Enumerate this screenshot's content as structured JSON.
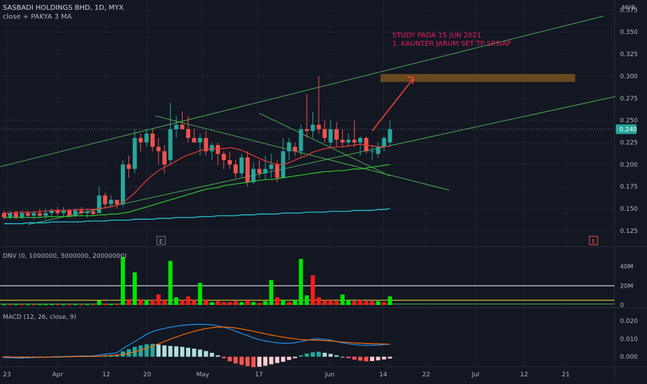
{
  "header": {
    "symbol_line": "SASBADI HOLDINGS BHD, 1D, MYX",
    "indicator_line": "close + PAKYA 3 MA",
    "currency": "MYR"
  },
  "annotation": {
    "line1": "STUDY PADA 15 JUN 2021",
    "line2": "1. KAUNTER JARUM SET TP SESIAP"
  },
  "price_axis": {
    "ticks": [
      "0.375",
      "0.350",
      "0.325",
      "0.300",
      "0.275",
      "0.250",
      "0.225",
      "0.200",
      "0.175",
      "0.150",
      "0.125"
    ],
    "last_price": "0.240"
  },
  "volume_pane": {
    "title": "DNV (0, 1000000, 5000000, 20000000)",
    "ticks": [
      "40M",
      "20M",
      "0"
    ]
  },
  "macd_pane": {
    "title": "MACD (12, 26, close, 9)",
    "ticks": [
      "0.020",
      "0.010",
      "0.000"
    ]
  },
  "time_axis": {
    "labels": [
      "23",
      "Apr",
      "12",
      "20",
      "May",
      "17",
      "Jun",
      "14",
      "22",
      "Jul",
      "12",
      "21"
    ]
  },
  "markers": {
    "earnings": "E"
  },
  "colors": {
    "background": "#131722",
    "up": "#26a69a",
    "down": "#ef5350",
    "ma_short": "#e53935",
    "ma_mid": "#2ebd2e",
    "ma_long": "#26c6da",
    "trendline": "#4caf50",
    "target_box": "#6d4c1f",
    "annotation": "#e91e63",
    "arrow": "#f44336",
    "vol_up": "#00e600",
    "vol_down": "#ff1a1a",
    "macd_line": "#2196f3",
    "signal_line": "#ff6d00"
  },
  "chart_data": {
    "type": "candlestick",
    "ylim": [
      0.11,
      0.38
    ],
    "candles": [
      {
        "o": 0.145,
        "h": 0.148,
        "l": 0.138,
        "c": 0.14
      },
      {
        "o": 0.14,
        "h": 0.148,
        "l": 0.138,
        "c": 0.145
      },
      {
        "o": 0.145,
        "h": 0.148,
        "l": 0.138,
        "c": 0.14
      },
      {
        "o": 0.14,
        "h": 0.148,
        "l": 0.138,
        "c": 0.145
      },
      {
        "o": 0.145,
        "h": 0.148,
        "l": 0.14,
        "c": 0.142
      },
      {
        "o": 0.142,
        "h": 0.148,
        "l": 0.138,
        "c": 0.145
      },
      {
        "o": 0.145,
        "h": 0.15,
        "l": 0.14,
        "c": 0.142
      },
      {
        "o": 0.142,
        "h": 0.15,
        "l": 0.138,
        "c": 0.145
      },
      {
        "o": 0.145,
        "h": 0.15,
        "l": 0.14,
        "c": 0.148
      },
      {
        "o": 0.148,
        "h": 0.152,
        "l": 0.142,
        "c": 0.145
      },
      {
        "o": 0.145,
        "h": 0.152,
        "l": 0.14,
        "c": 0.148
      },
      {
        "o": 0.148,
        "h": 0.15,
        "l": 0.14,
        "c": 0.142
      },
      {
        "o": 0.142,
        "h": 0.15,
        "l": 0.14,
        "c": 0.148
      },
      {
        "o": 0.148,
        "h": 0.152,
        "l": 0.142,
        "c": 0.145
      },
      {
        "o": 0.145,
        "h": 0.15,
        "l": 0.14,
        "c": 0.147
      },
      {
        "o": 0.147,
        "h": 0.15,
        "l": 0.142,
        "c": 0.144
      },
      {
        "o": 0.145,
        "h": 0.175,
        "l": 0.145,
        "c": 0.165
      },
      {
        "o": 0.165,
        "h": 0.168,
        "l": 0.15,
        "c": 0.155
      },
      {
        "o": 0.155,
        "h": 0.165,
        "l": 0.152,
        "c": 0.16
      },
      {
        "o": 0.16,
        "h": 0.16,
        "l": 0.15,
        "c": 0.155
      },
      {
        "o": 0.155,
        "h": 0.205,
        "l": 0.152,
        "c": 0.2
      },
      {
        "o": 0.2,
        "h": 0.21,
        "l": 0.185,
        "c": 0.195
      },
      {
        "o": 0.195,
        "h": 0.24,
        "l": 0.19,
        "c": 0.23
      },
      {
        "o": 0.23,
        "h": 0.235,
        "l": 0.215,
        "c": 0.225
      },
      {
        "o": 0.225,
        "h": 0.24,
        "l": 0.22,
        "c": 0.235
      },
      {
        "o": 0.235,
        "h": 0.24,
        "l": 0.215,
        "c": 0.22
      },
      {
        "o": 0.22,
        "h": 0.23,
        "l": 0.2,
        "c": 0.215
      },
      {
        "o": 0.215,
        "h": 0.222,
        "l": 0.19,
        "c": 0.2
      },
      {
        "o": 0.205,
        "h": 0.27,
        "l": 0.2,
        "c": 0.24
      },
      {
        "o": 0.24,
        "h": 0.255,
        "l": 0.23,
        "c": 0.245
      },
      {
        "o": 0.245,
        "h": 0.26,
        "l": 0.24,
        "c": 0.24
      },
      {
        "o": 0.24,
        "h": 0.255,
        "l": 0.225,
        "c": 0.23
      },
      {
        "o": 0.23,
        "h": 0.24,
        "l": 0.225,
        "c": 0.225
      },
      {
        "o": 0.225,
        "h": 0.235,
        "l": 0.21,
        "c": 0.23
      },
      {
        "o": 0.23,
        "h": 0.238,
        "l": 0.21,
        "c": 0.215
      },
      {
        "o": 0.215,
        "h": 0.225,
        "l": 0.205,
        "c": 0.222
      },
      {
        "o": 0.222,
        "h": 0.225,
        "l": 0.2,
        "c": 0.212
      },
      {
        "o": 0.212,
        "h": 0.215,
        "l": 0.195,
        "c": 0.205
      },
      {
        "o": 0.205,
        "h": 0.215,
        "l": 0.195,
        "c": 0.2
      },
      {
        "o": 0.2,
        "h": 0.205,
        "l": 0.185,
        "c": 0.19
      },
      {
        "o": 0.19,
        "h": 0.212,
        "l": 0.185,
        "c": 0.208
      },
      {
        "o": 0.208,
        "h": 0.215,
        "l": 0.175,
        "c": 0.18
      },
      {
        "o": 0.18,
        "h": 0.202,
        "l": 0.178,
        "c": 0.195
      },
      {
        "o": 0.195,
        "h": 0.205,
        "l": 0.185,
        "c": 0.19
      },
      {
        "o": 0.19,
        "h": 0.21,
        "l": 0.182,
        "c": 0.195
      },
      {
        "o": 0.195,
        "h": 0.212,
        "l": 0.185,
        "c": 0.2
      },
      {
        "o": 0.2,
        "h": 0.205,
        "l": 0.18,
        "c": 0.185
      },
      {
        "o": 0.185,
        "h": 0.23,
        "l": 0.185,
        "c": 0.215
      },
      {
        "o": 0.215,
        "h": 0.23,
        "l": 0.205,
        "c": 0.225
      },
      {
        "o": 0.22,
        "h": 0.225,
        "l": 0.21,
        "c": 0.215
      },
      {
        "o": 0.215,
        "h": 0.245,
        "l": 0.21,
        "c": 0.24
      },
      {
        "o": 0.24,
        "h": 0.28,
        "l": 0.23,
        "c": 0.238
      },
      {
        "o": 0.238,
        "h": 0.26,
        "l": 0.23,
        "c": 0.245
      },
      {
        "o": 0.245,
        "h": 0.3,
        "l": 0.235,
        "c": 0.24
      },
      {
        "o": 0.24,
        "h": 0.25,
        "l": 0.225,
        "c": 0.23
      },
      {
        "o": 0.225,
        "h": 0.25,
        "l": 0.22,
        "c": 0.24
      },
      {
        "o": 0.24,
        "h": 0.248,
        "l": 0.22,
        "c": 0.228
      },
      {
        "o": 0.228,
        "h": 0.24,
        "l": 0.22,
        "c": 0.225
      },
      {
        "o": 0.225,
        "h": 0.235,
        "l": 0.22,
        "c": 0.228
      },
      {
        "o": 0.228,
        "h": 0.25,
        "l": 0.22,
        "c": 0.225
      },
      {
        "o": 0.225,
        "h": 0.232,
        "l": 0.21,
        "c": 0.23
      },
      {
        "o": 0.23,
        "h": 0.232,
        "l": 0.212,
        "c": 0.215
      },
      {
        "o": 0.215,
        "h": 0.222,
        "l": 0.205,
        "c": 0.215
      },
      {
        "o": 0.212,
        "h": 0.225,
        "l": 0.208,
        "c": 0.22
      },
      {
        "o": 0.22,
        "h": 0.232,
        "l": 0.215,
        "c": 0.23
      },
      {
        "o": 0.225,
        "h": 0.25,
        "l": 0.22,
        "c": 0.24
      }
    ],
    "ma_short": [
      0.145,
      0.145,
      0.146,
      0.146,
      0.146,
      0.146,
      0.147,
      0.147,
      0.148,
      0.148,
      0.148,
      0.148,
      0.149,
      0.149,
      0.149,
      0.149,
      0.15,
      0.151,
      0.152,
      0.154,
      0.157,
      0.162,
      0.168,
      0.175,
      0.182,
      0.188,
      0.193,
      0.197,
      0.2,
      0.204,
      0.208,
      0.211,
      0.213,
      0.216,
      0.217,
      0.218,
      0.218,
      0.218,
      0.219,
      0.218,
      0.216,
      0.213,
      0.21,
      0.207,
      0.204,
      0.202,
      0.2,
      0.2,
      0.202,
      0.205,
      0.208,
      0.21,
      0.214,
      0.216,
      0.218,
      0.219,
      0.22,
      0.22,
      0.221,
      0.222,
      0.223,
      0.222,
      0.221,
      0.22,
      0.22,
      0.221
    ],
    "ma_mid": [
      0.14,
      0.14,
      0.14,
      0.14,
      0.14,
      0.14,
      0.14,
      0.141,
      0.141,
      0.141,
      0.141,
      0.141,
      0.142,
      0.142,
      0.142,
      0.142,
      0.143,
      0.143,
      0.144,
      0.144,
      0.145,
      0.146,
      0.148,
      0.15,
      0.152,
      0.154,
      0.156,
      0.158,
      0.16,
      0.162,
      0.164,
      0.166,
      0.168,
      0.17,
      0.172,
      0.173,
      0.174,
      0.176,
      0.177,
      0.178,
      0.179,
      0.18,
      0.181,
      0.182,
      0.183,
      0.183,
      0.184,
      0.185,
      0.186,
      0.187,
      0.188,
      0.189,
      0.19,
      0.191,
      0.192,
      0.192,
      0.193,
      0.193,
      0.194,
      0.195,
      0.195,
      0.196,
      0.197,
      0.198,
      0.199,
      0.2
    ],
    "ma_long": [
      0.133,
      0.133,
      0.133,
      0.133,
      0.134,
      0.134,
      0.134,
      0.134,
      0.135,
      0.135,
      0.135,
      0.135,
      0.135,
      0.135,
      0.136,
      0.136,
      0.136,
      0.136,
      0.137,
      0.137,
      0.137,
      0.137,
      0.138,
      0.138,
      0.138,
      0.138,
      0.139,
      0.139,
      0.139,
      0.14,
      0.14,
      0.14,
      0.14,
      0.141,
      0.141,
      0.141,
      0.142,
      0.142,
      0.142,
      0.142,
      0.143,
      0.143,
      0.143,
      0.144,
      0.144,
      0.144,
      0.144,
      0.145,
      0.145,
      0.145,
      0.145,
      0.146,
      0.146,
      0.146,
      0.146,
      0.147,
      0.147,
      0.147,
      0.147,
      0.148,
      0.148,
      0.148,
      0.148,
      0.149,
      0.149,
      0.15
    ],
    "volume": [
      {
        "v": 0.5,
        "up": true
      },
      {
        "v": 0.4,
        "up": false
      },
      {
        "v": 0.6,
        "up": true
      },
      {
        "v": 0.5,
        "up": false
      },
      {
        "v": 0.4,
        "up": true
      },
      {
        "v": 0.5,
        "up": false
      },
      {
        "v": 0.6,
        "up": true
      },
      {
        "v": 0.5,
        "up": true
      },
      {
        "v": 0.8,
        "up": true
      },
      {
        "v": 0.6,
        "up": false
      },
      {
        "v": 0.5,
        "up": true
      },
      {
        "v": 0.5,
        "up": false
      },
      {
        "v": 0.6,
        "up": true
      },
      {
        "v": 0.4,
        "up": false
      },
      {
        "v": 0.5,
        "up": true
      },
      {
        "v": 0.5,
        "up": false
      },
      {
        "v": 4.5,
        "up": true
      },
      {
        "v": 1.5,
        "up": false
      },
      {
        "v": 1.2,
        "up": true
      },
      {
        "v": 1.0,
        "up": false
      },
      {
        "v": 50,
        "up": true
      },
      {
        "v": 6,
        "up": false
      },
      {
        "v": 34,
        "up": true
      },
      {
        "v": 6,
        "up": false
      },
      {
        "v": 5,
        "up": true
      },
      {
        "v": 5,
        "up": false
      },
      {
        "v": 11,
        "up": false
      },
      {
        "v": 5,
        "up": false
      },
      {
        "v": 46,
        "up": true
      },
      {
        "v": 8,
        "up": true
      },
      {
        "v": 5,
        "up": false
      },
      {
        "v": 9,
        "up": false
      },
      {
        "v": 5,
        "up": false
      },
      {
        "v": 23,
        "up": true
      },
      {
        "v": 5,
        "up": false
      },
      {
        "v": 3,
        "up": true
      },
      {
        "v": 4,
        "up": false
      },
      {
        "v": 3,
        "up": false
      },
      {
        "v": 3,
        "up": false
      },
      {
        "v": 4,
        "up": false
      },
      {
        "v": 3,
        "up": true
      },
      {
        "v": 5,
        "up": false
      },
      {
        "v": 3,
        "up": true
      },
      {
        "v": 2,
        "up": false
      },
      {
        "v": 4,
        "up": true
      },
      {
        "v": 26,
        "up": true
      },
      {
        "v": 8,
        "up": false
      },
      {
        "v": 5,
        "up": true
      },
      {
        "v": 3,
        "up": false
      },
      {
        "v": 5,
        "up": true
      },
      {
        "v": 48,
        "up": true
      },
      {
        "v": 10,
        "up": true
      },
      {
        "v": 31,
        "up": false
      },
      {
        "v": 8,
        "up": false
      },
      {
        "v": 5,
        "up": false
      },
      {
        "v": 5,
        "up": false
      },
      {
        "v": 4,
        "up": false
      },
      {
        "v": 11,
        "up": true
      },
      {
        "v": 5,
        "up": true
      },
      {
        "v": 4,
        "up": false
      },
      {
        "v": 5,
        "up": false
      },
      {
        "v": 4,
        "up": false
      },
      {
        "v": 4,
        "up": false
      },
      {
        "v": 4,
        "up": true
      },
      {
        "v": 3,
        "up": false
      },
      {
        "v": 9,
        "up": true
      }
    ],
    "macd_hist": [
      -0.0005,
      -0.0006,
      -0.0007,
      -0.0006,
      -0.0005,
      -0.0004,
      -0.0003,
      -0.0002,
      -0.0001,
      0.0,
      0.0001,
      0.0002,
      0.0003,
      0.0003,
      0.0003,
      0.0003,
      0.0005,
      0.0008,
      0.001,
      0.0012,
      0.003,
      0.0042,
      0.0055,
      0.0063,
      0.007,
      0.0072,
      0.0068,
      0.0063,
      0.006,
      0.0058,
      0.0055,
      0.005,
      0.0045,
      0.004,
      0.0032,
      0.0022,
      0.0008,
      -0.0008,
      -0.0025,
      -0.0038,
      -0.0045,
      -0.0052,
      -0.0058,
      -0.0056,
      -0.005,
      -0.0042,
      -0.0035,
      -0.0028,
      -0.0018,
      -0.0008,
      0.0008,
      0.0018,
      0.0025,
      0.0028,
      0.0022,
      0.0016,
      0.0008,
      0.0,
      -0.0008,
      -0.0016,
      -0.0022,
      -0.0026,
      -0.0024,
      -0.002,
      -0.0015,
      -0.001
    ],
    "macd_line": [
      -0.0005,
      -0.0006,
      -0.0007,
      -0.0007,
      -0.0006,
      -0.0005,
      -0.0004,
      -0.0003,
      -0.0001,
      0.0,
      0.0001,
      0.0002,
      0.0003,
      0.0004,
      0.0004,
      0.0004,
      0.001,
      0.0015,
      0.0018,
      0.0022,
      0.0045,
      0.0065,
      0.0085,
      0.0105,
      0.0125,
      0.014,
      0.015,
      0.0158,
      0.0165,
      0.017,
      0.0175,
      0.0178,
      0.018,
      0.0181,
      0.018,
      0.0178,
      0.0172,
      0.0165,
      0.0155,
      0.0142,
      0.013,
      0.0118,
      0.0105,
      0.0095,
      0.0088,
      0.0082,
      0.0078,
      0.0075,
      0.0075,
      0.0078,
      0.0085,
      0.0092,
      0.0098,
      0.01,
      0.0098,
      0.0092,
      0.0085,
      0.0078,
      0.0072,
      0.0068,
      0.0065,
      0.0064,
      0.0064,
      0.0065,
      0.0068,
      0.007
    ],
    "signal_line": [
      0.0,
      -0.0001,
      -0.0002,
      -0.0002,
      -0.0003,
      -0.0003,
      -0.0003,
      -0.0003,
      -0.0002,
      -0.0002,
      -0.0001,
      0.0,
      0.0001,
      0.0001,
      0.0002,
      0.0002,
      0.0003,
      0.0005,
      0.0007,
      0.0009,
      0.0013,
      0.002,
      0.0028,
      0.0037,
      0.0048,
      0.006,
      0.0072,
      0.0085,
      0.0098,
      0.011,
      0.0122,
      0.0132,
      0.0142,
      0.015,
      0.0157,
      0.0162,
      0.0165,
      0.0166,
      0.0164,
      0.016,
      0.0155,
      0.0149,
      0.0142,
      0.0135,
      0.0128,
      0.0121,
      0.0115,
      0.0109,
      0.0104,
      0.01,
      0.0096,
      0.0094,
      0.0093,
      0.0092,
      0.009,
      0.0088,
      0.0085,
      0.0082,
      0.008,
      0.0077,
      0.0075,
      0.0074,
      0.0073,
      0.0072,
      0.0071,
      0.007
    ],
    "macd_ylim": [
      -0.004,
      0.025
    ],
    "volume_ylim": [
      0,
      52
    ]
  }
}
